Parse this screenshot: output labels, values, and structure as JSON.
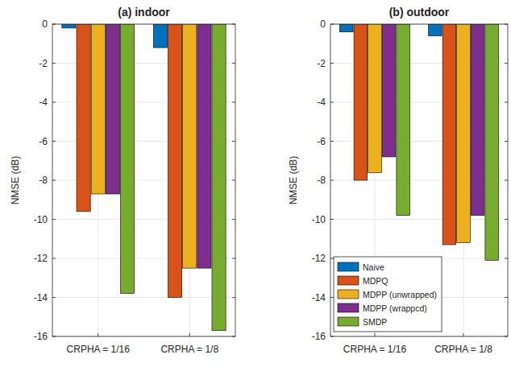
{
  "chart_data": [
    {
      "type": "bar",
      "title": "(a) indoor",
      "y_label": "NMSE (dB)",
      "categories": [
        "CRPHA = 1/16",
        "CRPHA = 1/8"
      ],
      "series": [
        {
          "color": "#0072BD",
          "values": [
            -0.2,
            -1.2
          ]
        },
        {
          "color": "#D95319",
          "values": [
            -9.6,
            -14.0
          ]
        },
        {
          "color": "#EDB120",
          "values": [
            -8.7,
            -12.5
          ]
        },
        {
          "color": "#7E2F8E",
          "values": [
            -8.7,
            -12.5
          ]
        },
        {
          "color": "#77AC30",
          "values": [
            -13.8,
            -15.7
          ]
        }
      ],
      "ylim": [
        -16,
        0
      ],
      "yticks": [
        -16,
        -14,
        -12,
        -10,
        -8,
        -6,
        -4,
        -2,
        0
      ],
      "grid": true
    },
    {
      "type": "bar",
      "title": "(b) outdoor",
      "y_label": "NMSE (dB)",
      "categories": [
        "CRPHA = 1/16",
        "CRPHA = 1/8"
      ],
      "series": [
        {
          "name": "Naive",
          "color": "#0072BD",
          "values": [
            -0.4,
            -0.6
          ]
        },
        {
          "name": "MDPQ",
          "color": "#D95319",
          "values": [
            -8.0,
            -11.3
          ]
        },
        {
          "name": "MDPP (unwrapped)",
          "color": "#EDB120",
          "values": [
            -7.6,
            -11.2
          ]
        },
        {
          "name": "MDPP (wrappcd)",
          "color": "#7E2F8E",
          "values": [
            -6.8,
            -9.8
          ]
        },
        {
          "name": "SMDP",
          "color": "#77AC30",
          "values": [
            -9.8,
            -12.1
          ]
        }
      ],
      "ylim": [
        -16,
        0
      ],
      "yticks": [
        -16,
        -14,
        -12,
        -10,
        -8,
        -6,
        -4,
        -2,
        0
      ],
      "grid": true,
      "legend": "lower left"
    }
  ]
}
